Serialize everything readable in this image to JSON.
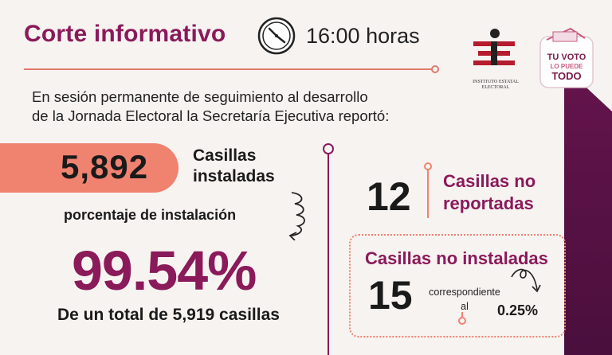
{
  "header": {
    "title": "Corte informativo",
    "time": "16:00 horas"
  },
  "logos": {
    "iee_text": "INSTITUTO ESTATAL ELECTORAL",
    "voto_line1": "TU VOTO",
    "voto_line2": "LO PUEDE",
    "voto_line3": "TODO"
  },
  "intro": {
    "line1": "En sesión permanente de seguimiento al desarrollo",
    "line2": "de la Jornada Electoral la Secretaría Ejecutiva reportó:"
  },
  "installed": {
    "count": "5,892",
    "label_line1": "Casillas",
    "label_line2": "instaladas"
  },
  "percentage": {
    "label": "porcentaje de instalación",
    "value": "99.54%",
    "total": "De un total de 5,919 casillas"
  },
  "not_reported": {
    "count": "12",
    "label_line1": "Casillas no",
    "label_line2": "reportadas"
  },
  "not_installed": {
    "title": "Casillas no instaladas",
    "count": "15",
    "corr_line1": "correspondiente",
    "corr_line2": "al",
    "percent": "0.25%"
  },
  "colors": {
    "accent_purple": "#8a1a5a",
    "accent_coral": "#f08270",
    "bar_purple": "#5a1245"
  },
  "icons": [
    "clock-icon",
    "squiggle-arrow-icon",
    "loop-arrow-icon"
  ]
}
